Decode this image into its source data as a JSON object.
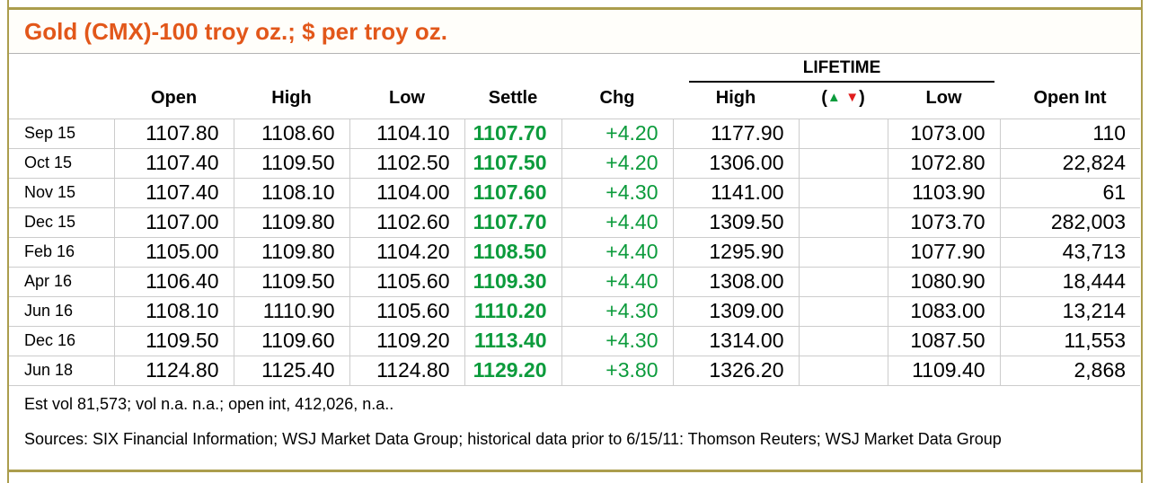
{
  "title": "Gold (CMX)-100 troy oz.; $ per troy oz.",
  "colors": {
    "title_orange": "#e2571a",
    "positive_green": "#0c9b3c",
    "negative_red": "#e01c1c",
    "frame_gold": "#ab9d4d",
    "grid_gray": "#cccccc"
  },
  "table": {
    "group_header": "LIFETIME",
    "columns": {
      "month": "",
      "open": "Open",
      "high": "High",
      "low": "Low",
      "settle": "Settle",
      "chg": "Chg",
      "lt_high": "High",
      "lt_low": "Low",
      "open_int": "Open Int"
    },
    "arrow_header": {
      "open": "(",
      "up": "▲",
      "down": "▼",
      "close": ")"
    },
    "rows": [
      {
        "month": "Sep 15",
        "open": "1107.80",
        "high": "1108.60",
        "low": "1104.10",
        "settle": "1107.70",
        "chg": "+4.20",
        "lt_high": "1177.90",
        "lt_arrow": "",
        "lt_low": "1073.00",
        "open_int": "110"
      },
      {
        "month": "Oct 15",
        "open": "1107.40",
        "high": "1109.50",
        "low": "1102.50",
        "settle": "1107.50",
        "chg": "+4.20",
        "lt_high": "1306.00",
        "lt_arrow": "",
        "lt_low": "1072.80",
        "open_int": "22,824"
      },
      {
        "month": "Nov 15",
        "open": "1107.40",
        "high": "1108.10",
        "low": "1104.00",
        "settle": "1107.60",
        "chg": "+4.30",
        "lt_high": "1141.00",
        "lt_arrow": "",
        "lt_low": "1103.90",
        "open_int": "61"
      },
      {
        "month": "Dec 15",
        "open": "1107.00",
        "high": "1109.80",
        "low": "1102.60",
        "settle": "1107.70",
        "chg": "+4.40",
        "lt_high": "1309.50",
        "lt_arrow": "",
        "lt_low": "1073.70",
        "open_int": "282,003"
      },
      {
        "month": "Feb 16",
        "open": "1105.00",
        "high": "1109.80",
        "low": "1104.20",
        "settle": "1108.50",
        "chg": "+4.40",
        "lt_high": "1295.90",
        "lt_arrow": "",
        "lt_low": "1077.90",
        "open_int": "43,713"
      },
      {
        "month": "Apr 16",
        "open": "1106.40",
        "high": "1109.50",
        "low": "1105.60",
        "settle": "1109.30",
        "chg": "+4.40",
        "lt_high": "1308.00",
        "lt_arrow": "",
        "lt_low": "1080.90",
        "open_int": "18,444"
      },
      {
        "month": "Jun 16",
        "open": "1108.10",
        "high": "1110.90",
        "low": "1105.60",
        "settle": "1110.20",
        "chg": "+4.30",
        "lt_high": "1309.00",
        "lt_arrow": "",
        "lt_low": "1083.00",
        "open_int": "13,214"
      },
      {
        "month": "Dec 16",
        "open": "1109.50",
        "high": "1109.60",
        "low": "1109.20",
        "settle": "1113.40",
        "chg": "+4.30",
        "lt_high": "1314.00",
        "lt_arrow": "",
        "lt_low": "1087.50",
        "open_int": "11,553"
      },
      {
        "month": "Jun 18",
        "open": "1124.80",
        "high": "1125.40",
        "low": "1124.80",
        "settle": "1129.20",
        "chg": "+3.80",
        "lt_high": "1326.20",
        "lt_arrow": "",
        "lt_low": "1109.40",
        "open_int": "2,868"
      }
    ]
  },
  "footer": {
    "est_vol_line": "Est vol 81,573; vol n.a. n.a.; open int, 412,026, n.a..",
    "sources_line": "Sources: SIX Financial Information; WSJ Market Data Group; historical data prior to 6/15/11: Thomson Reuters; WSJ Market Data Group"
  }
}
